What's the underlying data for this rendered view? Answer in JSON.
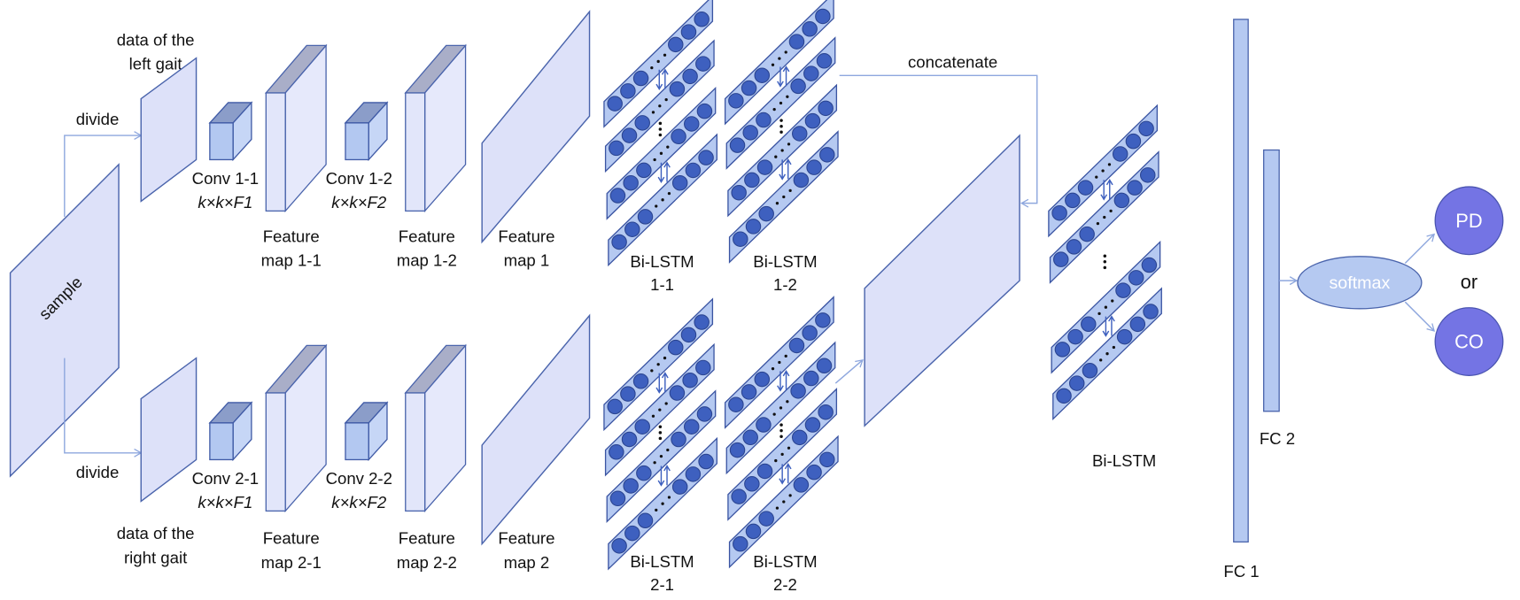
{
  "labels": {
    "left_gait": [
      "data of the",
      "left gait"
    ],
    "right_gait": [
      "data of the",
      "right gait"
    ],
    "divide_top": "divide",
    "divide_bottom": "divide",
    "sample": "sample",
    "conv_1_1": [
      "Conv 1-1",
      "k×k×F1"
    ],
    "conv_1_2": [
      "Conv 1-2",
      "k×k×F2"
    ],
    "conv_2_1": [
      "Conv 2-1",
      "k×k×F1"
    ],
    "conv_2_2": [
      "Conv 2-2",
      "k×k×F2"
    ],
    "fm_1_1": [
      "Feature",
      "map 1-1"
    ],
    "fm_1_2": [
      "Feature",
      "map 1-2"
    ],
    "fm_1": [
      "Feature",
      "map 1"
    ],
    "fm_2_1": [
      "Feature",
      "map 2-1"
    ],
    "fm_2_2": [
      "Feature",
      "map 2-2"
    ],
    "fm_2": [
      "Feature",
      "map 2"
    ],
    "bilstm_1_1": [
      "Bi-LSTM",
      "1-1"
    ],
    "bilstm_1_2": [
      "Bi-LSTM",
      "1-2"
    ],
    "bilstm_2_1": [
      "Bi-LSTM",
      "2-1"
    ],
    "bilstm_2_2": [
      "Bi-LSTM",
      "2-2"
    ],
    "concatenate": "concatenate",
    "bilstm": "Bi-LSTM",
    "fc1": "FC 1",
    "fc2": "FC 2",
    "softmax": "softmax",
    "pd": "PD",
    "or": "or",
    "co": "CO"
  },
  "colors": {
    "plane_fill": "#dde1f9",
    "stroke": "#4a64ac",
    "node": "#3e60bf",
    "strip": "#b5c9f1",
    "softmax_fill": "#b5c9f1",
    "output_fill": "#7474e4"
  }
}
